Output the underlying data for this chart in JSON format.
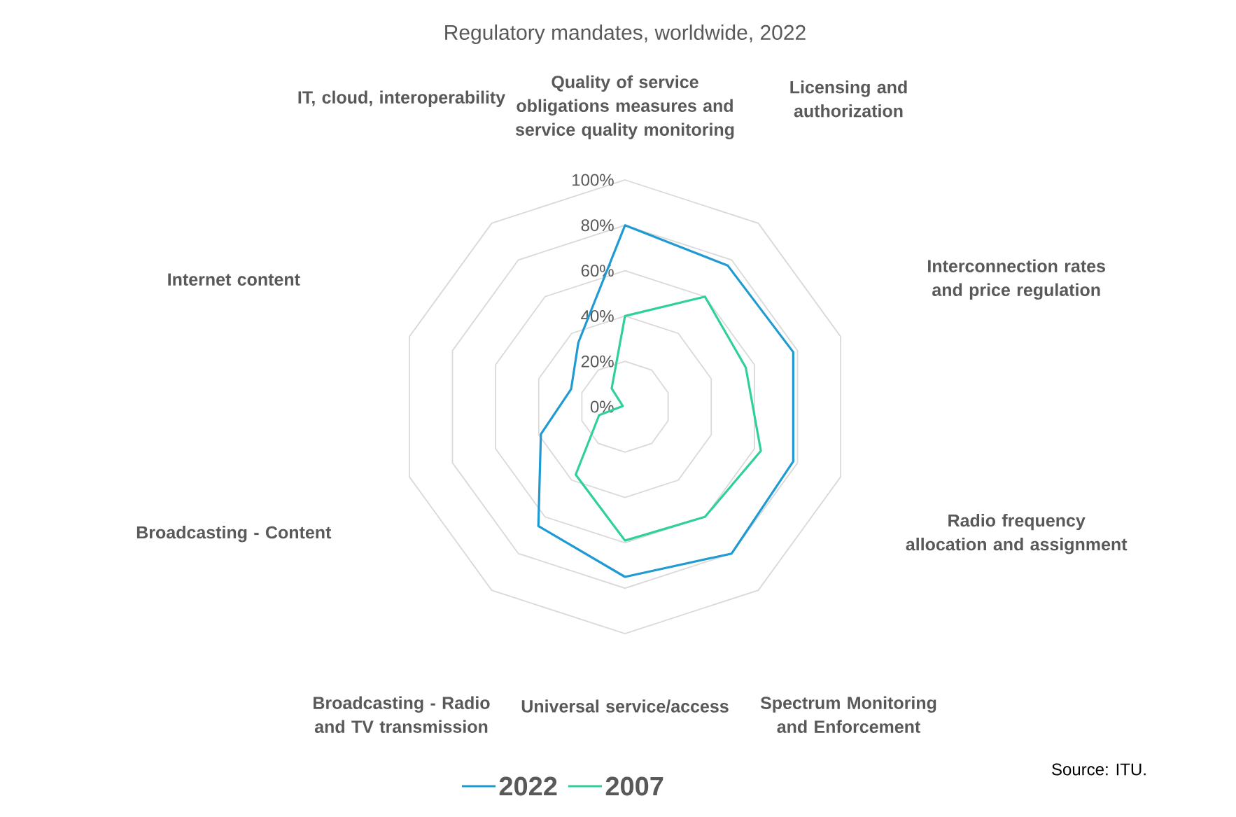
{
  "chart_data": {
    "type": "radar",
    "title": "Regulatory mandates, worldwide, 2022",
    "categories": [
      "Quality of service obligations measures and service quality monitoring",
      "Licensing and authorization",
      "Interconnection rates and price regulation",
      "Radio frequency allocation and assignment",
      "Spectrum Monitoring and Enforcement",
      "Universal service/access",
      "Broadcasting - Radio and TV transmission",
      "Broadcasting - Content",
      "Internet content",
      "IT, cloud, interoperability"
    ],
    "series": [
      {
        "name": "2022",
        "color": "#1f9ad2",
        "values": [
          80,
          77,
          78,
          78,
          80,
          75,
          65,
          39,
          25,
          35
        ]
      },
      {
        "name": "2007",
        "color": "#2fd09c",
        "values": [
          40,
          60,
          56,
          63,
          60,
          59,
          37,
          12,
          1,
          10
        ]
      }
    ],
    "ylim": [
      0,
      100
    ],
    "yticks": [
      {
        "value": 0,
        "label": "0%"
      },
      {
        "value": 20,
        "label": "20%"
      },
      {
        "value": 40,
        "label": "40%"
      },
      {
        "value": 60,
        "label": "60%"
      },
      {
        "value": 80,
        "label": "80%"
      },
      {
        "value": 100,
        "label": "100%"
      }
    ],
    "grid": true,
    "legend": "bottom",
    "marker": "none",
    "annotations": [
      "Source: ITU."
    ]
  }
}
